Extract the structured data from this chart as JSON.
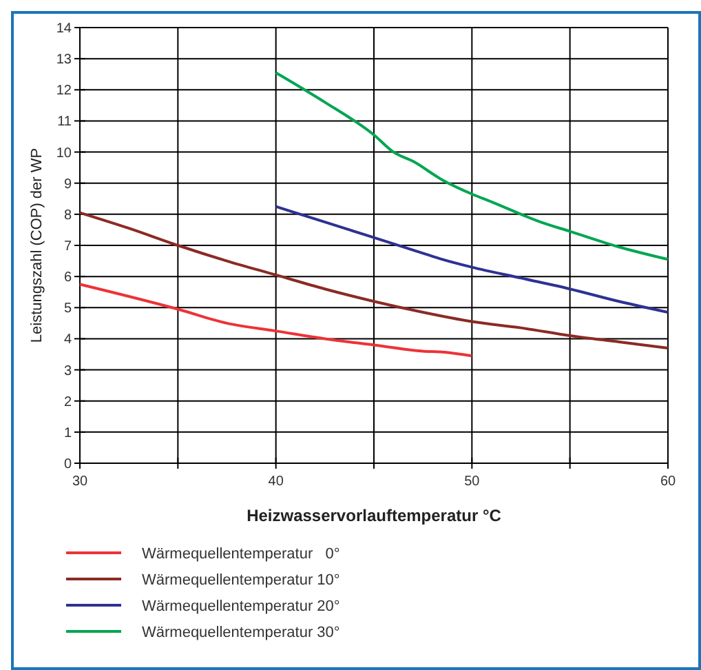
{
  "chart_data": {
    "type": "line",
    "xlabel": "Heizwasservorlauftemperatur °C",
    "ylabel": "Leistungszahl (COP) der WP",
    "xlim": [
      30,
      60
    ],
    "ylim": [
      0,
      14
    ],
    "xticks": [
      30,
      {
        "value": 35,
        "label": null
      },
      40,
      {
        "value": 45,
        "label": null
      },
      50,
      {
        "value": 55,
        "label": null
      },
      60
    ],
    "yticks": [
      0,
      1,
      2,
      3,
      4,
      5,
      6,
      7,
      8,
      9,
      10,
      11,
      12,
      13,
      14
    ],
    "grid": true,
    "legend": "bottom",
    "line_style": "solid",
    "marker": "none",
    "series": [
      {
        "name": "Wärmequellentemperatur   0°",
        "color": "#ed3237",
        "x": [
          30,
          35,
          37.5,
          40,
          42.5,
          45,
          47.5,
          48.5,
          50
        ],
        "values": [
          5.75,
          4.95,
          4.5,
          4.25,
          4.0,
          3.8,
          3.6,
          3.57,
          3.45
        ]
      },
      {
        "name": "Wärmequellentemperatur 10°",
        "color": "#8b2a24",
        "x": [
          30,
          32.5,
          35,
          37.5,
          40,
          42.5,
          45,
          47.5,
          50,
          52.5,
          55,
          57.5,
          60
        ],
        "values": [
          8.05,
          7.55,
          7.0,
          6.5,
          6.05,
          5.6,
          5.2,
          4.85,
          4.55,
          4.35,
          4.1,
          3.9,
          3.7
        ]
      },
      {
        "name": "Wärmequellentemperatur 20°",
        "color": "#2e3192",
        "x": [
          40,
          42.5,
          45,
          47.5,
          48.5,
          50,
          52.5,
          55,
          57.5,
          60
        ],
        "values": [
          8.25,
          7.75,
          7.25,
          6.75,
          6.55,
          6.3,
          5.95,
          5.6,
          5.2,
          4.85
        ]
      },
      {
        "name": "Wärmequellentemperatur 30°",
        "color": "#00a651",
        "x": [
          40,
          42.5,
          45,
          46,
          47,
          48.5,
          50,
          51,
          53.5,
          55,
          57.5,
          60
        ],
        "values": [
          12.55,
          11.6,
          10.55,
          10.0,
          9.7,
          9.1,
          8.65,
          8.4,
          7.75,
          7.45,
          6.95,
          6.55
        ]
      }
    ]
  }
}
